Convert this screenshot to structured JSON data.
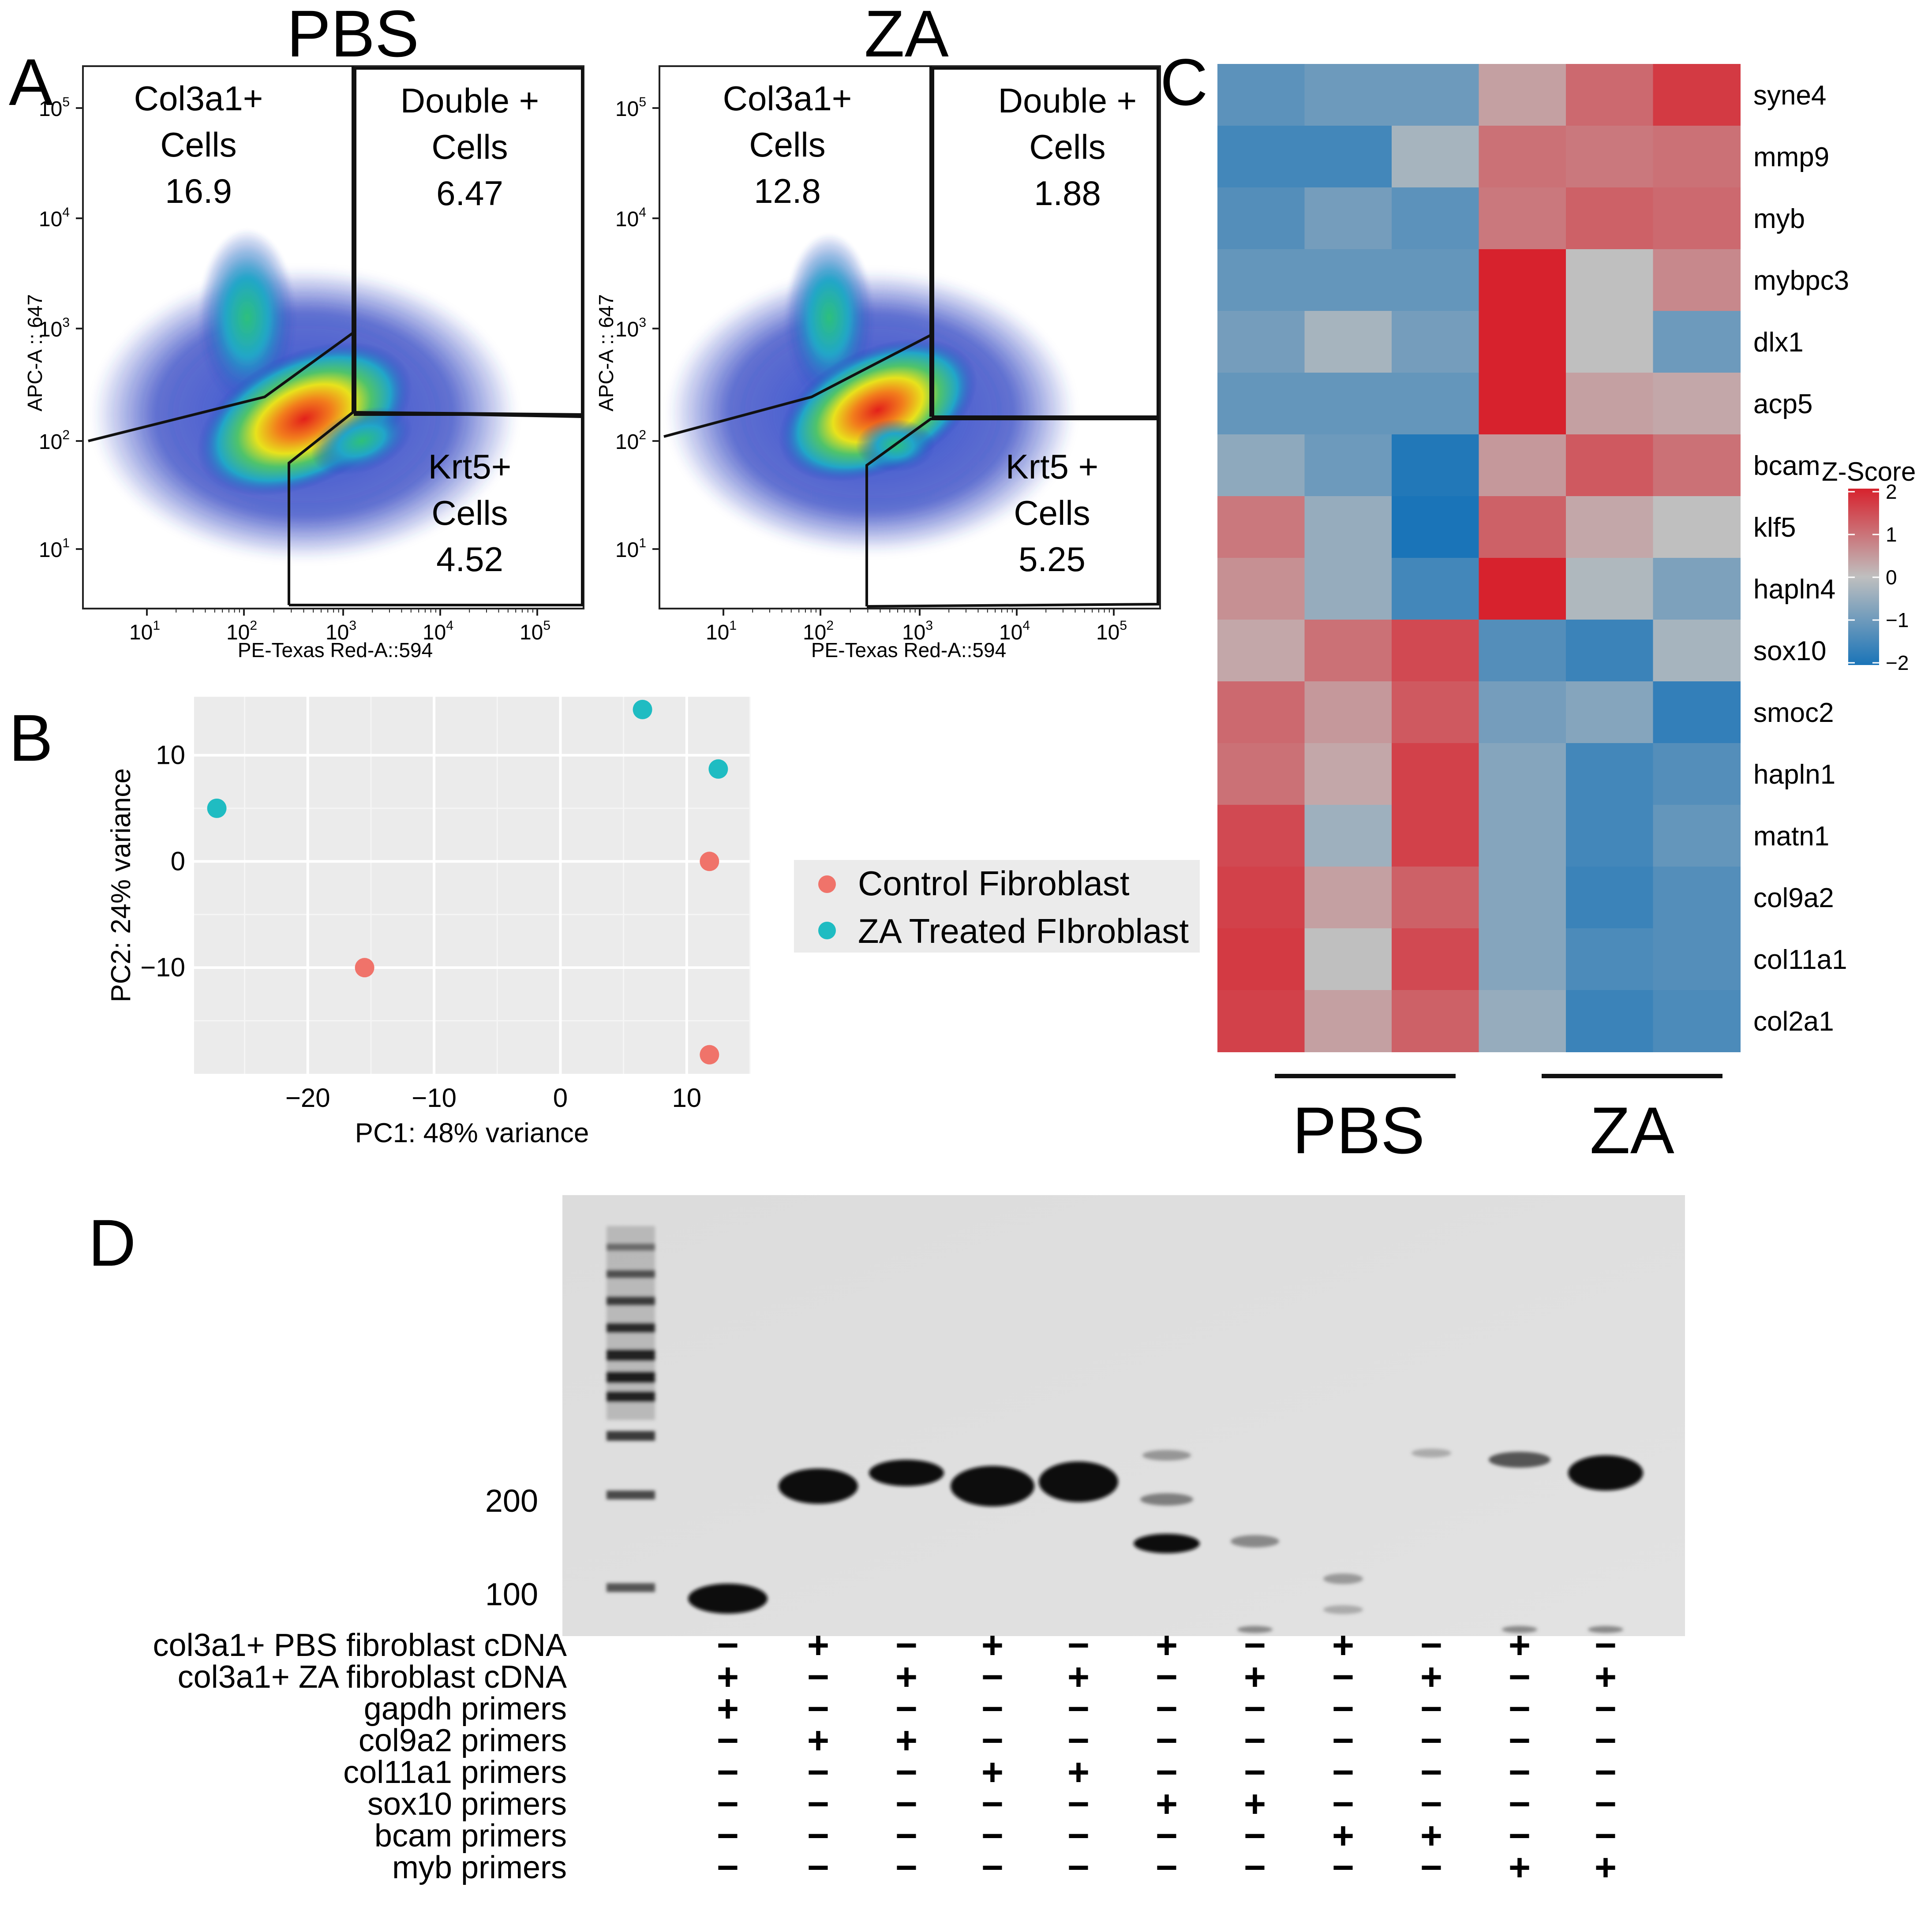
{
  "panel_labels": {
    "a": "A",
    "b": "B",
    "c": "C",
    "d": "D"
  },
  "panel_a": {
    "plots": [
      {
        "title": "PBS",
        "gates": [
          {
            "name": "Col3a1+",
            "name2": "Cells",
            "value": "16.9"
          },
          {
            "name": "Double +",
            "name2": "Cells",
            "value": "6.47"
          },
          {
            "name": "Krt5+",
            "name2": "Cells",
            "value": "4.52"
          }
        ]
      },
      {
        "title": "ZA",
        "gates": [
          {
            "name": "Col3a1+",
            "name2": "Cells",
            "value": "12.8"
          },
          {
            "name": "Double +",
            "name2": "Cells",
            "value": "1.88"
          },
          {
            "name": "Krt5 +",
            "name2": "Cells",
            "value": "5.25"
          }
        ]
      }
    ],
    "x_label": "PE-Texas Red-A::594",
    "y_label": "APC-A :: 647",
    "tick_base": "10",
    "x_exponents": [
      "1",
      "2",
      "3",
      "4",
      "5"
    ],
    "y_exponents": [
      "5",
      "4",
      "3",
      "2",
      "1"
    ]
  },
  "chart_data": [
    {
      "type": "scatter",
      "title": "",
      "xlabel": "PC1: 48% variance",
      "ylabel": "PC2: 24% variance",
      "xlim": [
        -29,
        15
      ],
      "ylim": [
        -20,
        15.5
      ],
      "x_ticks": [
        -20,
        -10,
        0,
        10
      ],
      "y_ticks": [
        10,
        0,
        -10
      ],
      "x_tick_labels": [
        "−20",
        "−10",
        "0",
        "10"
      ],
      "y_tick_labels": [
        "10",
        "0",
        "−10"
      ],
      "series": [
        {
          "name": "Control Fibroblast",
          "color": "#f0736a",
          "points": [
            [
              -15.5,
              -10
            ],
            [
              11.8,
              0
            ],
            [
              11.8,
              -18.2
            ]
          ]
        },
        {
          "name": "ZA Treated FIbroblast",
          "color": "#1fbcc2",
          "points": [
            [
              -27.2,
              5
            ],
            [
              6.5,
              14.3
            ],
            [
              12.5,
              8.7
            ]
          ]
        }
      ]
    },
    {
      "type": "heatmap",
      "title": "",
      "genes": [
        "syne4",
        "mmp9",
        "myb",
        "mybpc3",
        "dlx1",
        "acp5",
        "bcam",
        "klf5",
        "hapln4",
        "sox10",
        "smoc2",
        "hapln1",
        "matn1",
        "col9a2",
        "col11a1",
        "col2a1"
      ],
      "groups": [
        "PBS",
        "ZA"
      ],
      "columns": 6,
      "z_scores": [
        [
          -1.2,
          -1.0,
          -1.0,
          0.4,
          1.1,
          1.7
        ],
        [
          -1.5,
          -1.5,
          -0.3,
          1.0,
          0.9,
          1.0
        ],
        [
          -1.3,
          -0.9,
          -1.2,
          0.9,
          1.2,
          1.1
        ],
        [
          -1.1,
          -1.1,
          -1.1,
          2.0,
          0.0,
          0.7
        ],
        [
          -0.9,
          -0.3,
          -0.9,
          2.1,
          0.0,
          -1.0
        ],
        [
          -1.1,
          -1.1,
          -1.1,
          2.0,
          0.4,
          0.3
        ],
        [
          -0.6,
          -1.0,
          -1.9,
          0.5,
          1.3,
          1.0
        ],
        [
          0.9,
          -0.5,
          -2.0,
          1.2,
          0.3,
          0.0
        ],
        [
          0.6,
          -0.5,
          -1.5,
          2.0,
          -0.2,
          -0.8
        ],
        [
          0.3,
          1.0,
          1.5,
          -1.3,
          -1.6,
          -0.3
        ],
        [
          1.1,
          0.5,
          1.3,
          -0.9,
          -0.7,
          -1.7
        ],
        [
          1.0,
          0.3,
          1.6,
          -0.7,
          -1.5,
          -1.3
        ],
        [
          1.5,
          -0.4,
          1.6,
          -0.7,
          -1.5,
          -1.1
        ],
        [
          1.6,
          0.4,
          1.2,
          -0.7,
          -1.6,
          -1.3
        ],
        [
          1.7,
          0.0,
          1.5,
          -0.7,
          -1.4,
          -1.3
        ],
        [
          1.6,
          0.4,
          1.2,
          -0.5,
          -1.6,
          -1.4
        ]
      ],
      "colorscale_title": "Z-Score",
      "colorscale_ticks": [
        "2",
        "1",
        "0",
        "−1",
        "−2"
      ],
      "colorscale_range": [
        -2,
        2
      ],
      "colors": {
        "high": "#d7222d",
        "mid": "#bfbfbf",
        "low": "#1a74b8"
      }
    },
    {
      "type": "table",
      "title": "",
      "gel_sizes": [
        "200",
        "100"
      ],
      "lane_count": 11,
      "rows": [
        {
          "label": "col3a1+ PBS fibroblast cDNA",
          "signs": [
            "−",
            "+",
            "−",
            "+",
            "−",
            "+",
            "−",
            "+",
            "−",
            "+",
            "−"
          ]
        },
        {
          "label": "col3a1+ ZA fibroblast cDNA",
          "signs": [
            "+",
            "−",
            "+",
            "−",
            "+",
            "−",
            "+",
            "−",
            "+",
            "−",
            "+"
          ]
        },
        {
          "label": "gapdh primers",
          "signs": [
            "+",
            "−",
            "−",
            "−",
            "−",
            "−",
            "−",
            "−",
            "−",
            "−",
            "−"
          ]
        },
        {
          "label": "col9a2 primers",
          "signs": [
            "−",
            "+",
            "+",
            "−",
            "−",
            "−",
            "−",
            "−",
            "−",
            "−",
            "−"
          ]
        },
        {
          "label": "col11a1 primers",
          "signs": [
            "−",
            "−",
            "−",
            "+",
            "+",
            "−",
            "−",
            "−",
            "−",
            "−",
            "−"
          ]
        },
        {
          "label": "sox10 primers",
          "signs": [
            "−",
            "−",
            "−",
            "−",
            "−",
            "+",
            "+",
            "−",
            "−",
            "−",
            "−"
          ]
        },
        {
          "label": "bcam primers",
          "signs": [
            "−",
            "−",
            "−",
            "−",
            "−",
            "−",
            "−",
            "+",
            "+",
            "−",
            "−"
          ]
        },
        {
          "label": "myb primers",
          "signs": [
            "−",
            "−",
            "−",
            "−",
            "−",
            "−",
            "−",
            "−",
            "−",
            "+",
            "+"
          ]
        }
      ]
    }
  ]
}
